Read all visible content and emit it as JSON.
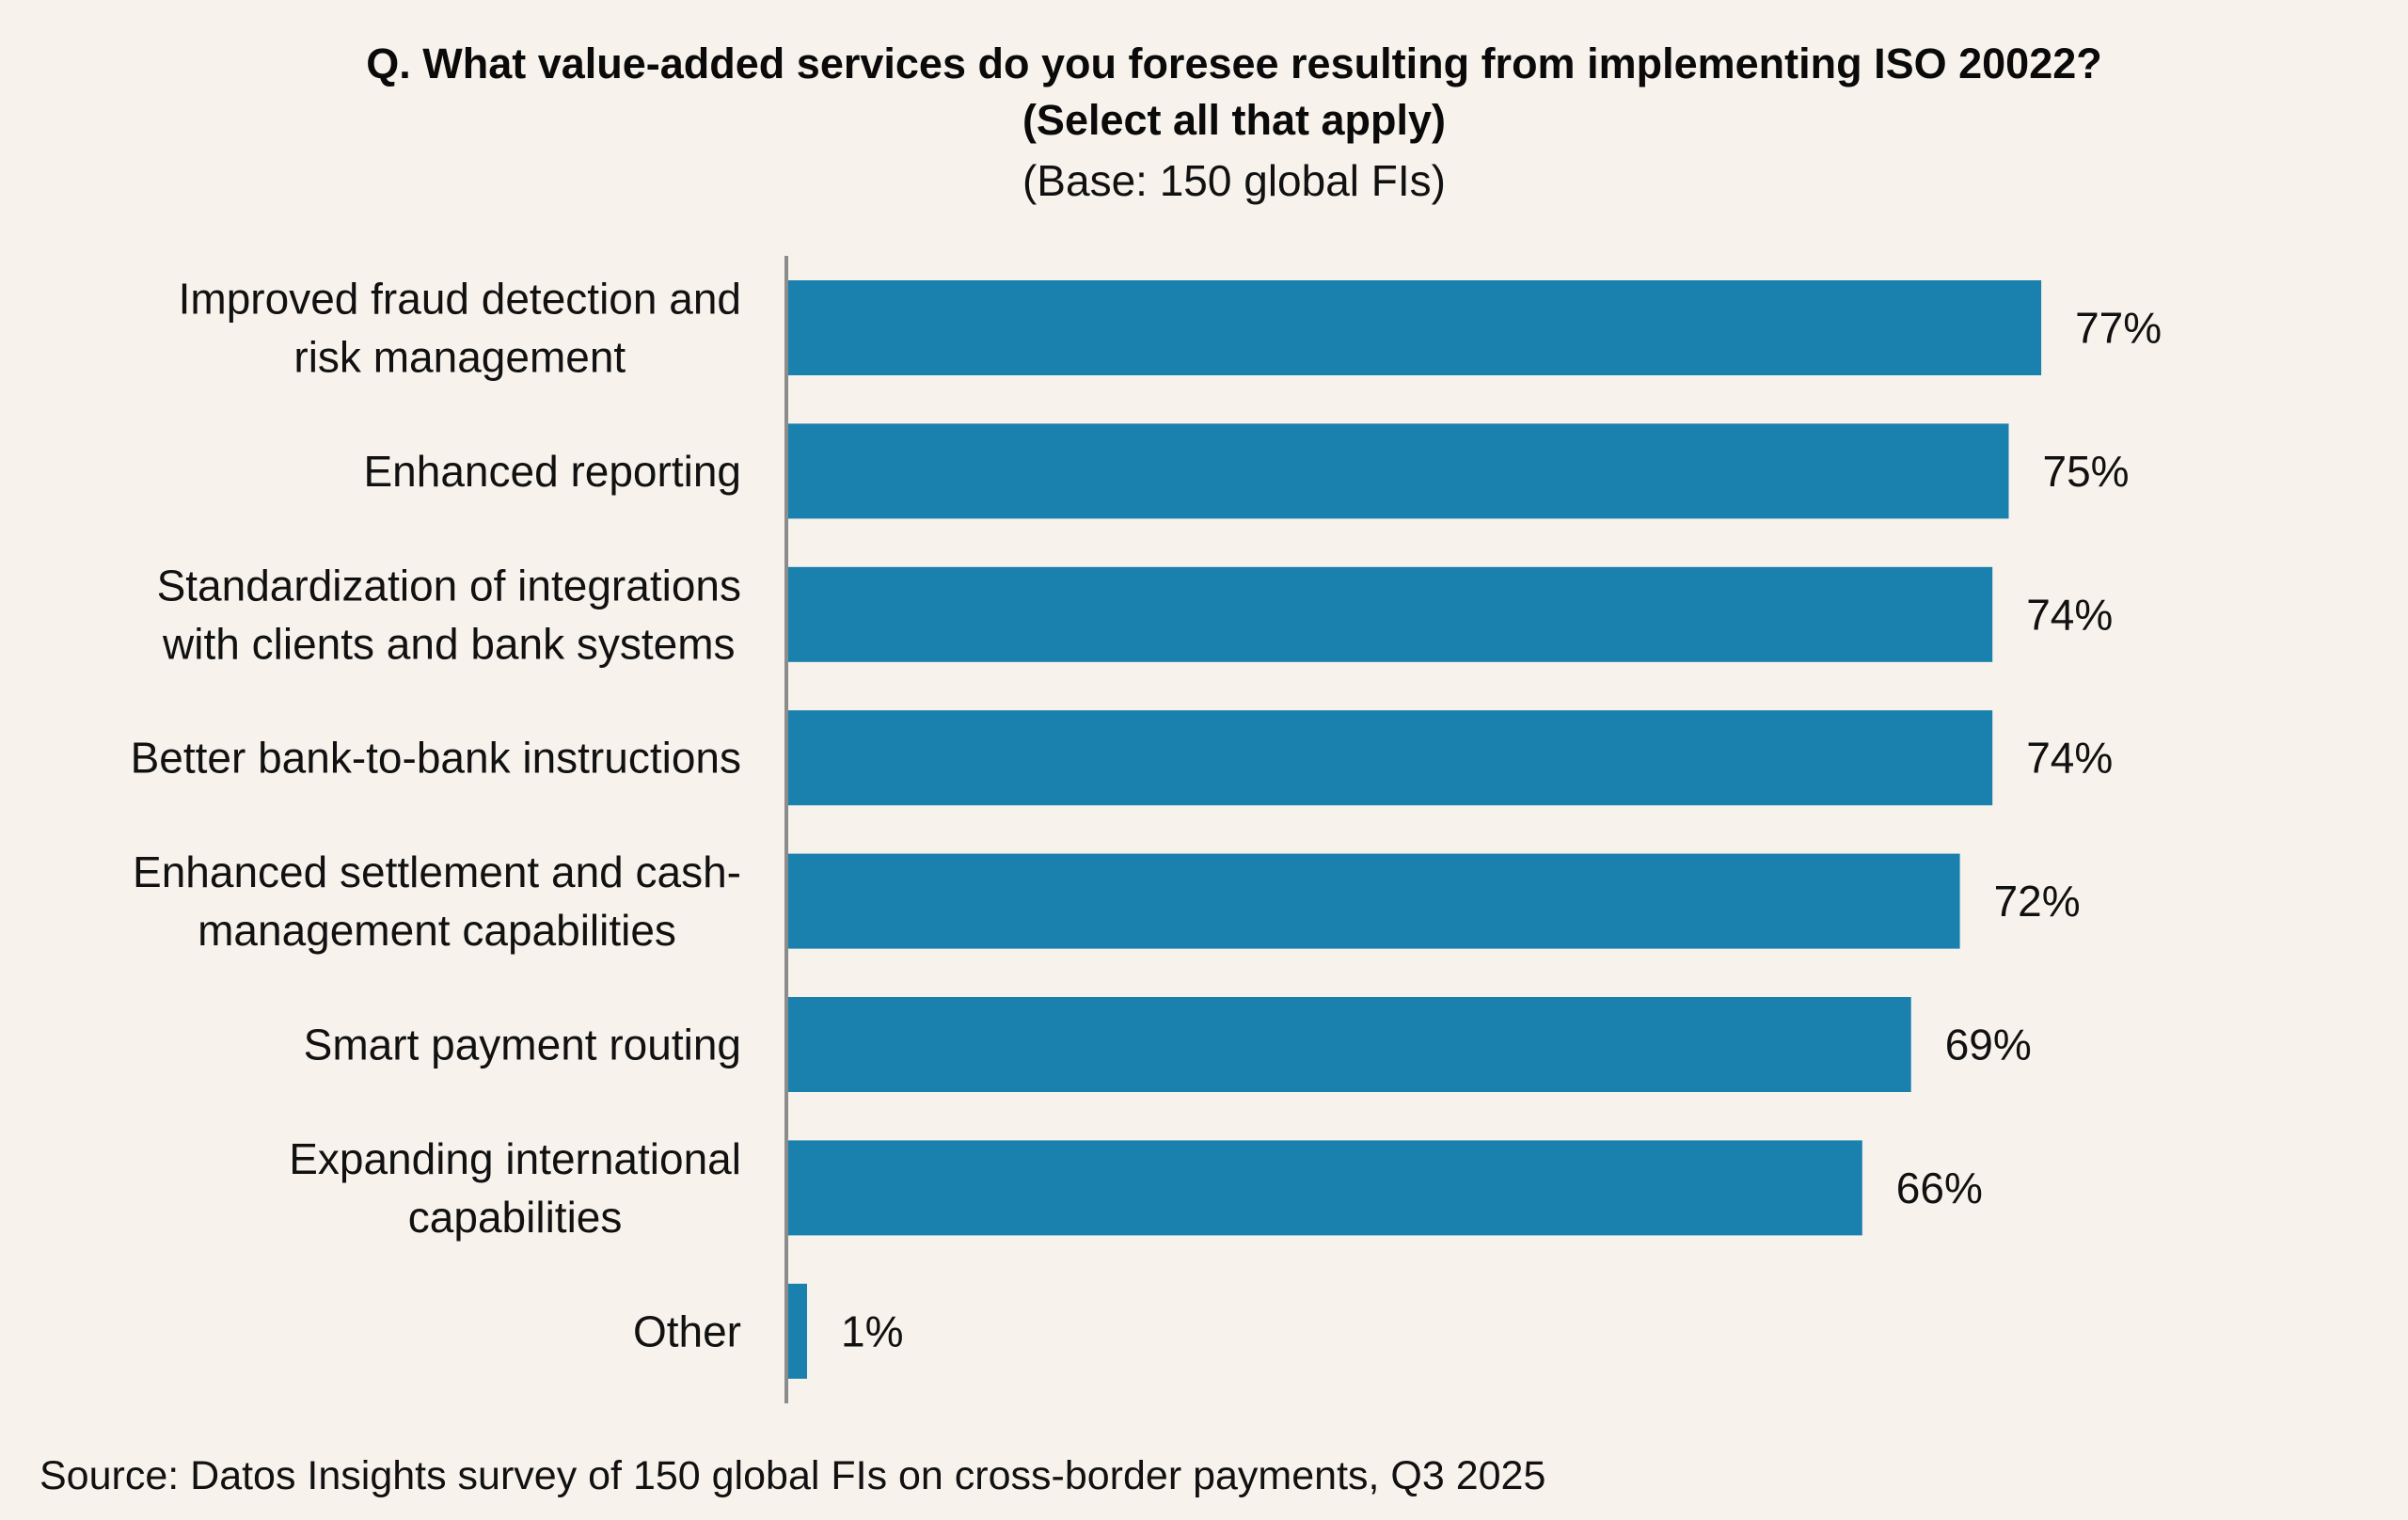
{
  "chart_data": {
    "type": "bar",
    "orientation": "horizontal",
    "title": "Q. What value-added services do you foresee resulting from implementing ISO 20022? (Select all that apply)",
    "subtitle": "(Base: 150 global FIs)",
    "categories": [
      [
        "Improved fraud detection and",
        "risk management"
      ],
      [
        "Enhanced reporting"
      ],
      [
        "Standardization of integrations",
        "with clients and bank systems"
      ],
      [
        "Better bank-to-bank instructions"
      ],
      [
        "Enhanced settlement and cash-",
        "management capabilities"
      ],
      [
        "Smart payment routing"
      ],
      [
        "Expanding international",
        "capabilities"
      ],
      [
        "Other"
      ]
    ],
    "values": [
      77,
      75,
      74,
      74,
      72,
      69,
      66,
      1
    ],
    "value_labels": [
      "77%",
      "75%",
      "74%",
      "74%",
      "72%",
      "69%",
      "66%",
      "1%"
    ],
    "unit": "%",
    "xlabel": "",
    "ylabel": "",
    "xlim": [
      0,
      100
    ],
    "grid": false,
    "legend": null,
    "colors": {
      "bar": "#1a80ae",
      "axis": "#8c8c8c",
      "background": "#f8f2ec"
    },
    "source": "Source: Datos Insights survey of 150 global FIs on cross-border payments, Q3 2025"
  }
}
